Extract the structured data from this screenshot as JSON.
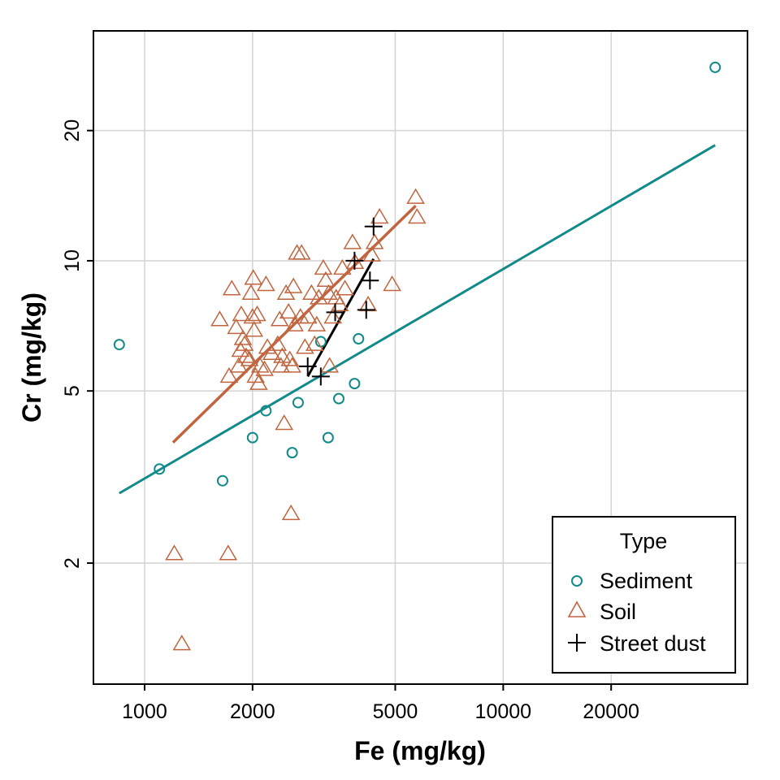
{
  "chart_data": {
    "type": "scatter",
    "xlabel": "Fe (mg/kg)",
    "ylabel": "Cr (mg/kg)",
    "x_scale": "log",
    "y_scale": "log",
    "xlim": [
      720,
      48000
    ],
    "ylim": [
      1.05,
      34
    ],
    "x_ticks": [
      1000,
      2000,
      5000,
      10000,
      20000
    ],
    "x_tick_labels": [
      "1000",
      "2000",
      "5000",
      "10000",
      "20000"
    ],
    "y_ticks": [
      2,
      5,
      10,
      20
    ],
    "y_tick_labels": [
      "2",
      "5",
      "10",
      "20"
    ],
    "grid": true,
    "legend": {
      "title": "Type",
      "position": "bottom-right",
      "entries": [
        "Sediment",
        "Soil",
        "Street dust"
      ]
    },
    "colors": {
      "Sediment": "#138a8a",
      "Soil": "#c0653f",
      "Street dust": "#000000"
    },
    "series": [
      {
        "name": "Sediment",
        "marker": "circle",
        "points": [
          [
            850,
            6.4
          ],
          [
            1100,
            3.3
          ],
          [
            1650,
            3.1
          ],
          [
            2000,
            3.9
          ],
          [
            2180,
            4.5
          ],
          [
            2580,
            3.6
          ],
          [
            2680,
            4.7
          ],
          [
            3100,
            6.5
          ],
          [
            3250,
            3.9
          ],
          [
            3480,
            4.8
          ],
          [
            3850,
            5.2
          ],
          [
            3950,
            6.6
          ],
          [
            39000,
            28
          ]
        ],
        "fit": [
          [
            850,
            2.9
          ],
          [
            39000,
            18.5
          ]
        ]
      },
      {
        "name": "Soil",
        "marker": "triangle",
        "points": [
          [
            1210,
            2.1
          ],
          [
            1270,
            1.3
          ],
          [
            1620,
            7.3
          ],
          [
            1710,
            2.1
          ],
          [
            1720,
            5.4
          ],
          [
            1750,
            8.6
          ],
          [
            1800,
            7.0
          ],
          [
            1830,
            5.7
          ],
          [
            1850,
            6.2
          ],
          [
            1860,
            7.5
          ],
          [
            1880,
            6.6
          ],
          [
            1900,
            6.4
          ],
          [
            1920,
            6.0
          ],
          [
            1960,
            5.9
          ],
          [
            1980,
            8.4
          ],
          [
            2000,
            7.4
          ],
          [
            2020,
            6.9
          ],
          [
            2010,
            9.1
          ],
          [
            2040,
            5.4
          ],
          [
            2060,
            7.5
          ],
          [
            2080,
            5.2
          ],
          [
            2100,
            5.7
          ],
          [
            2160,
            5.6
          ],
          [
            2180,
            8.8
          ],
          [
            2200,
            6.3
          ],
          [
            2260,
            6.1
          ],
          [
            2350,
            6.4
          ],
          [
            2380,
            7.3
          ],
          [
            2400,
            5.7
          ],
          [
            2420,
            6.0
          ],
          [
            2450,
            4.2
          ],
          [
            2480,
            8.4
          ],
          [
            2520,
            7.6
          ],
          [
            2540,
            5.9
          ],
          [
            2560,
            2.6
          ],
          [
            2580,
            5.7
          ],
          [
            2600,
            8.7
          ],
          [
            2620,
            7.1
          ],
          [
            2660,
            10.4
          ],
          [
            2720,
            7.4
          ],
          [
            2740,
            10.4
          ],
          [
            2800,
            6.3
          ],
          [
            2860,
            7.4
          ],
          [
            2920,
            8.4
          ],
          [
            2980,
            6.4
          ],
          [
            3020,
            7.1
          ],
          [
            3060,
            8.2
          ],
          [
            3150,
            9.6
          ],
          [
            3200,
            9.0
          ],
          [
            3260,
            8.4
          ],
          [
            3280,
            5.7
          ],
          [
            3350,
            7.4
          ],
          [
            3420,
            8.2
          ],
          [
            3500,
            7.9
          ],
          [
            3560,
            9.6
          ],
          [
            3620,
            8.6
          ],
          [
            3800,
            11.0
          ],
          [
            3860,
            9.9
          ],
          [
            4200,
            7.9
          ],
          [
            4300,
            10.3
          ],
          [
            4380,
            11.0
          ],
          [
            4520,
            12.6
          ],
          [
            4900,
            8.8
          ],
          [
            5700,
            14.0
          ],
          [
            5750,
            12.6
          ]
        ],
        "fit": [
          [
            1200,
            3.8
          ],
          [
            5700,
            13.4
          ]
        ]
      },
      {
        "name": "Street dust",
        "marker": "plus",
        "points": [
          [
            2850,
            5.7
          ],
          [
            3100,
            5.4
          ],
          [
            3400,
            7.6
          ],
          [
            3850,
            10.0
          ],
          [
            4150,
            7.7
          ],
          [
            4250,
            9.0
          ],
          [
            4350,
            12.0
          ]
        ],
        "fit": [
          [
            2850,
            5.4
          ],
          [
            4350,
            10.1
          ]
        ]
      }
    ]
  }
}
